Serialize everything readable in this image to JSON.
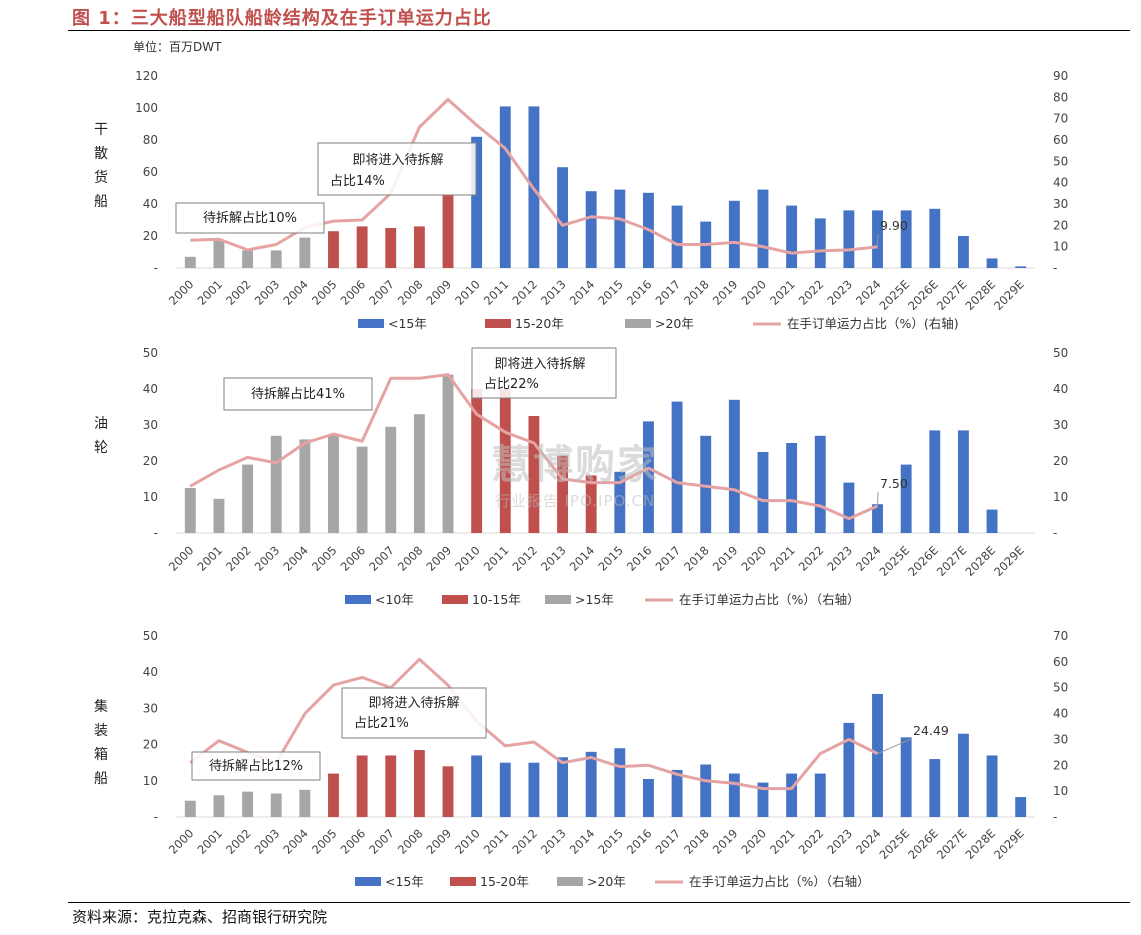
{
  "header": {
    "title": "图 1：三大船型船队船龄结构及在手订单运力占比",
    "unit": "单位：百万DWT"
  },
  "footer": {
    "source": "资料来源：克拉克森、招商银行研究院"
  },
  "watermark": {
    "line1": "慧博购家",
    "line2": "行业报告 IPO.IPO.CN"
  },
  "colors": {
    "blue": "#4472c4",
    "red": "#c0504d",
    "gray": "#a6a6a6",
    "line": "#e6a3a3"
  },
  "chart_data": [
    {
      "type": "bar",
      "side_label": [
        "干",
        "散",
        "货",
        "船"
      ],
      "categories": [
        "2000",
        "2001",
        "2002",
        "2003",
        "2004",
        "2005",
        "2006",
        "2007",
        "2008",
        "2009",
        "2010",
        "2011",
        "2012",
        "2013",
        "2014",
        "2015",
        "2016",
        "2017",
        "2018",
        "2019",
        "2020",
        "2021",
        "2022",
        "2023",
        "2024",
        "2025E",
        "2026E",
        "2027E",
        "2028E",
        "2029E"
      ],
      "series": [
        {
          "name": "<15年",
          "color": "blue",
          "values": [
            null,
            null,
            null,
            null,
            null,
            null,
            null,
            null,
            null,
            null,
            82,
            101,
            101,
            63,
            48,
            49,
            47,
            39,
            29,
            42,
            49,
            39,
            31,
            36,
            36,
            36,
            37,
            20,
            6,
            1
          ]
        },
        {
          "name": "15-20年",
          "color": "red",
          "values": [
            null,
            null,
            null,
            null,
            null,
            23,
            26,
            25,
            26,
            46,
            null,
            null,
            null,
            null,
            null,
            null,
            null,
            null,
            null,
            null,
            null,
            null,
            null,
            null,
            null,
            null,
            null,
            null,
            null,
            null
          ]
        },
        {
          "name": ">20年",
          "color": "gray",
          "values": [
            7,
            17,
            11,
            11,
            19,
            null,
            null,
            null,
            null,
            null,
            null,
            null,
            null,
            null,
            null,
            null,
            null,
            null,
            null,
            null,
            null,
            null,
            null,
            null,
            null,
            null,
            null,
            null,
            null,
            null
          ]
        }
      ],
      "line": {
        "name": "在手订单运力占比（%）(右轴)",
        "values": [
          13,
          13.5,
          8.5,
          11,
          19,
          22,
          22.5,
          35,
          66,
          79,
          67,
          56,
          37,
          20,
          24,
          23,
          18,
          11,
          11,
          12,
          10,
          7,
          8,
          8.5,
          9.9,
          null,
          null,
          null,
          null,
          null
        ]
      },
      "ylim_left": [
        0,
        120
      ],
      "yticks_left": [
        0,
        20,
        40,
        60,
        80,
        100,
        120
      ],
      "ylim_right": [
        0,
        90
      ],
      "yticks_right": [
        0,
        10,
        20,
        30,
        40,
        50,
        60,
        70,
        80,
        90
      ],
      "zero_label": "-",
      "annotations": [
        {
          "text": "待拆解占比10%",
          "box": true
        },
        {
          "text": "即将进入待拆解",
          "text2": "占比14%",
          "box": true
        },
        {
          "text": "9.90",
          "box": false
        }
      ]
    },
    {
      "type": "bar",
      "side_label": [
        "油",
        "轮"
      ],
      "categories": [
        "2000",
        "2001",
        "2002",
        "2003",
        "2004",
        "2005",
        "2006",
        "2007",
        "2008",
        "2009",
        "2010",
        "2011",
        "2012",
        "2013",
        "2014",
        "2015",
        "2016",
        "2017",
        "2018",
        "2019",
        "2020",
        "2021",
        "2022",
        "2023",
        "2024",
        "2025E",
        "2026E",
        "2027E",
        "2028E",
        "2029E"
      ],
      "series": [
        {
          "name": "<10年",
          "color": "blue",
          "values": [
            null,
            null,
            null,
            null,
            null,
            null,
            null,
            null,
            null,
            null,
            null,
            null,
            null,
            null,
            null,
            17,
            31,
            36.5,
            27,
            37,
            22.5,
            25,
            27,
            14,
            8,
            19,
            28.5,
            28.5,
            6.5,
            null
          ]
        },
        {
          "name": "10-15年",
          "color": "red",
          "values": [
            null,
            null,
            null,
            null,
            null,
            null,
            null,
            null,
            null,
            null,
            40,
            40,
            32.5,
            21.5,
            16,
            null,
            null,
            null,
            null,
            null,
            null,
            null,
            null,
            null,
            null,
            null,
            null,
            null,
            null,
            null
          ]
        },
        {
          "name": ">15年",
          "color": "gray",
          "values": [
            12.5,
            9.5,
            19,
            27,
            26,
            27.5,
            24,
            29.5,
            33,
            44,
            null,
            null,
            null,
            null,
            null,
            null,
            null,
            null,
            null,
            null,
            null,
            null,
            null,
            null,
            null,
            null,
            null,
            null,
            null,
            null
          ]
        }
      ],
      "line": {
        "name": "在手订单运力占比（%）（右轴）",
        "values": [
          13,
          17.5,
          21,
          19.5,
          25,
          27.5,
          25.5,
          43,
          43,
          44,
          33,
          28,
          25,
          15,
          14,
          14,
          18,
          14,
          13,
          12,
          9,
          9,
          7.5,
          4,
          7.5,
          null,
          null,
          null,
          null,
          null
        ]
      },
      "ylim_left": [
        0,
        50
      ],
      "yticks_left": [
        0,
        10,
        20,
        30,
        40,
        50
      ],
      "ylim_right": [
        0,
        50
      ],
      "yticks_right": [
        0,
        10,
        20,
        30,
        40,
        50
      ],
      "zero_label": "-",
      "annotations": [
        {
          "text": "待拆解占比41%",
          "box": true
        },
        {
          "text": "即将进入待拆解",
          "text2": "占比22%",
          "box": true
        },
        {
          "text": "7.50",
          "box": false
        }
      ]
    },
    {
      "type": "bar",
      "side_label": [
        "集",
        "装",
        "箱",
        "船"
      ],
      "categories": [
        "2000",
        "2001",
        "2002",
        "2003",
        "2004",
        "2005",
        "2006",
        "2007",
        "2008",
        "2009",
        "2010",
        "2011",
        "2012",
        "2013",
        "2014",
        "2015",
        "2016",
        "2017",
        "2018",
        "2019",
        "2020",
        "2021",
        "2022",
        "2023",
        "2024",
        "2025E",
        "2026E",
        "2027E",
        "2028E",
        "2029E"
      ],
      "series": [
        {
          "name": "<15年",
          "color": "blue",
          "values": [
            null,
            null,
            null,
            null,
            null,
            null,
            null,
            null,
            null,
            null,
            17,
            15,
            15,
            16.5,
            18,
            19,
            10.5,
            13,
            14.5,
            12,
            9.5,
            12,
            12,
            26,
            34,
            22,
            16,
            23,
            17,
            5.5
          ]
        },
        {
          "name": "15-20年",
          "color": "red",
          "values": [
            null,
            null,
            null,
            null,
            null,
            12,
            17,
            17,
            18.5,
            14,
            null,
            null,
            null,
            null,
            null,
            null,
            null,
            null,
            null,
            null,
            null,
            null,
            null,
            null,
            null,
            null,
            null,
            null,
            null,
            null
          ]
        },
        {
          "name": ">20年",
          "color": "gray",
          "values": [
            4.5,
            6,
            7,
            6.5,
            7.5,
            null,
            null,
            null,
            null,
            null,
            null,
            null,
            null,
            null,
            null,
            null,
            null,
            null,
            null,
            null,
            null,
            null,
            null,
            null,
            null,
            null,
            null,
            null,
            null,
            null
          ]
        }
      ],
      "line": {
        "name": "在手订单运力占比（%）（右轴）",
        "values": [
          21,
          29.5,
          25,
          21,
          40,
          51,
          54,
          50,
          61,
          51,
          37,
          27.5,
          29,
          21,
          23,
          19.5,
          20,
          16.5,
          14,
          13,
          11,
          11,
          24.5,
          30,
          24.5,
          null,
          null,
          null,
          null,
          null
        ]
      },
      "ylim_left": [
        0,
        50
      ],
      "yticks_left": [
        0,
        10,
        20,
        30,
        40,
        50
      ],
      "ylim_right": [
        0,
        70
      ],
      "yticks_right": [
        0,
        10,
        20,
        30,
        40,
        50,
        60,
        70
      ],
      "zero_label": "-",
      "annotations": [
        {
          "text": "待拆解占比12%",
          "box": true
        },
        {
          "text": "即将进入待拆解",
          "text2": "占比21%",
          "box": true
        },
        {
          "text": "24.49",
          "box": false
        }
      ]
    }
  ]
}
